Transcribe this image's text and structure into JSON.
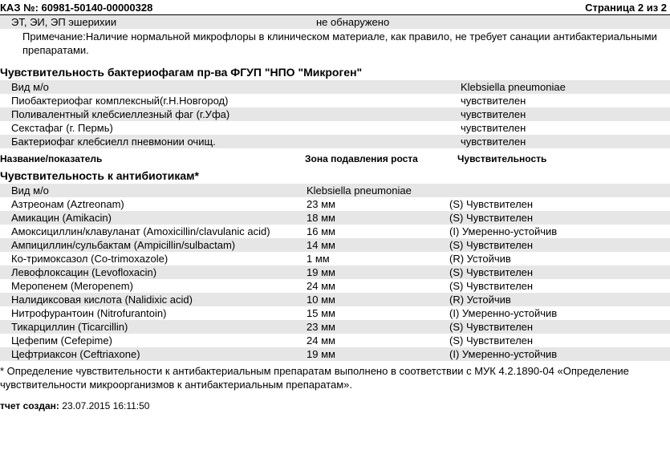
{
  "header": {
    "order_label": "КАЗ №:",
    "order_number": "60981-50140-00000328",
    "page_label": "Страница 2 из 2"
  },
  "detection": {
    "item": "ЭТ, ЭИ, ЭП  эшерихии",
    "result": "не обнаружено"
  },
  "note_text": "Примечание:Наличие нормальной микрофлоры в клиническом материале, как правило,  не требует санации антибактериальными препаратами.",
  "phage_section": {
    "title": "Чувствительность бактериофагам пр-ва ФГУП \"НПО \"Микроген\"",
    "species_label": "Вид м/о",
    "species_value": "Klebsiella pneumoniae",
    "rows": [
      {
        "name": "Пиобактериофаг комплексный(г.Н.Новгород)",
        "result": "чувствителен"
      },
      {
        "name": "Поливалентный клебсиеллезный фаг (г.Уфа)",
        "result": "чувствителен"
      },
      {
        "name": "Секстафаг (г. Пермь)",
        "result": "чувствителен"
      },
      {
        "name": "Бактериофаг клебсиелл пневмонии очищ.",
        "result": "чувствителен"
      }
    ]
  },
  "col_headers": {
    "h1": "Название/показатель",
    "h2": "Зона подавления роста",
    "h3": "Чувствительность"
  },
  "ab_section": {
    "title": "Чувствительность к антибиотикам*",
    "species_label": "Вид м/о",
    "species_value": "Klebsiella pneumoniae",
    "rows": [
      {
        "name": "Азтреонам (Aztreonam)",
        "zone": "23 мм",
        "sens": "(S) Чувствителен"
      },
      {
        "name": "Амикацин (Amikacin)",
        "zone": "18 мм",
        "sens": "(S) Чувствителен"
      },
      {
        "name": "Амоксициллин/клавуланат (Amoxicillin/clavulanic acid)",
        "zone": "16 мм",
        "sens": "(I) Умеренно-устойчив"
      },
      {
        "name": "Ампициллин/сульбактам (Ampicillin/sulbactam)",
        "zone": "14 мм",
        "sens": "(S) Чувствителен"
      },
      {
        "name": "Ко-тримоксазол (Co-trimoxazole)",
        "zone": "1 мм",
        "sens": "(R) Устойчив"
      },
      {
        "name": "Левофлоксацин (Levofloxacin)",
        "zone": "19 мм",
        "sens": "(S) Чувствителен"
      },
      {
        "name": "Меропенем  (Meropenem)",
        "zone": "24 мм",
        "sens": "(S) Чувствителен"
      },
      {
        "name": "Налидиксовая кислота (Nalidixic acid)",
        "zone": "10 мм",
        "sens": "(R) Устойчив"
      },
      {
        "name": "Нитрофурантоин (Nitrofurantoin)",
        "zone": "15 мм",
        "sens": "(I) Умеренно-устойчив"
      },
      {
        "name": "Тикарциллин (Ticarcillin)",
        "zone": "23 мм",
        "sens": "(S) Чувствителен"
      },
      {
        "name": "Цефепим (Cefepime)",
        "zone": "24 мм",
        "sens": "(S) Чувствителен"
      },
      {
        "name": "Цефтриаксон (Ceftriaxone)",
        "zone": "19 мм",
        "sens": "(I) Умеренно-устойчив"
      }
    ]
  },
  "footer_note": "* Определение чувствительности к антибактериальным препаратам выполнено  в соответствии с МУК 4.2.1890-04 «Определение чувствительности микроорганизмов к антибактериальным препаратам».",
  "report_created": {
    "label": "тчет создан:",
    "value": "23.07.2015 16:11:50"
  }
}
